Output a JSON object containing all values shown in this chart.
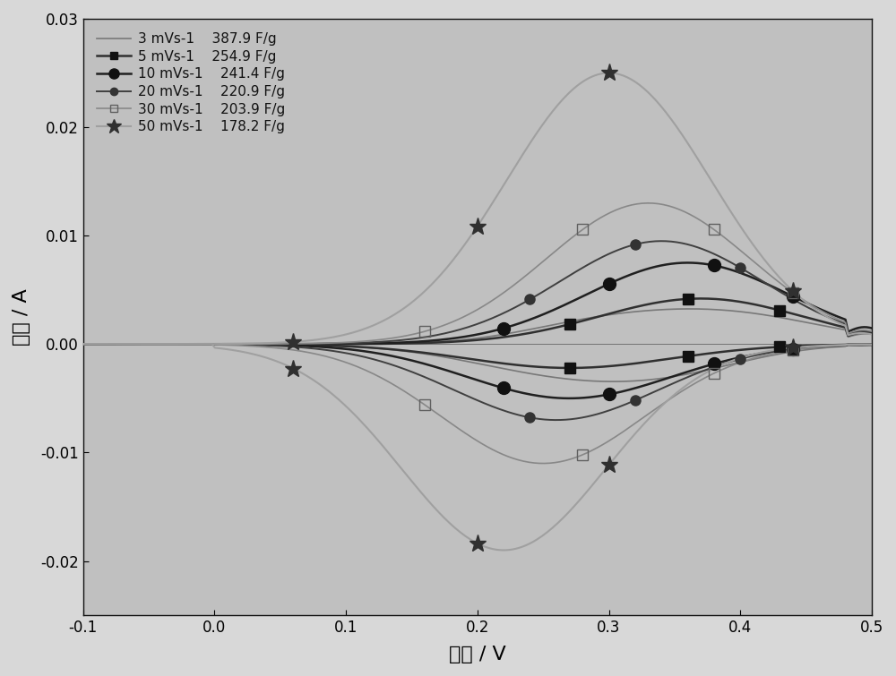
{
  "xlabel": "电压 / V",
  "ylabel": "电流 / A",
  "xlim": [
    -0.1,
    0.5
  ],
  "ylim": [
    -0.025,
    0.03
  ],
  "xticks": [
    -0.1,
    0.0,
    0.1,
    0.2,
    0.3,
    0.4,
    0.5
  ],
  "yticks": [
    -0.02,
    -0.01,
    0.0,
    0.01,
    0.02,
    0.03
  ],
  "background_color": "#d0d0d0",
  "plot_bg_color": "#c8c8c8",
  "legend_entries": [
    {
      "label": "3 mVs-1",
      "value": "387.9 F/g",
      "color": "#505050",
      "lw": 1.2,
      "marker": null
    },
    {
      "label": "5 mVs-1",
      "value": "254.9 F/g",
      "color": "#303030",
      "lw": 1.5,
      "marker": "s"
    },
    {
      "label": "10 mVs-1",
      "value": "241.4 F/g",
      "color": "#202020",
      "lw": 1.5,
      "marker": "o"
    },
    {
      "label": "20 mVs-1",
      "value": "220.9 F/g",
      "color": "#404040",
      "lw": 1.2,
      "marker": "o"
    },
    {
      "label": "30 mVs-1",
      "value": "203.9 F/g",
      "color": "#707070",
      "lw": 1.2,
      "marker": "s"
    },
    {
      "label": "50 mVs-1",
      "value": "178.2 F/g",
      "color": "#808080",
      "lw": 1.5,
      "marker": "*"
    }
  ],
  "figsize": [
    10.0,
    7.55
  ],
  "dpi": 100
}
